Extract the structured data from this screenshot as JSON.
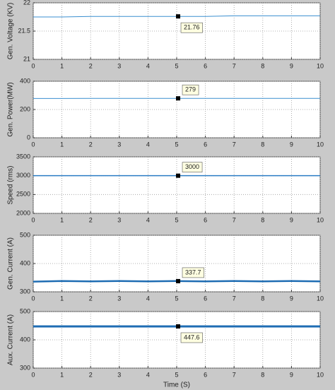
{
  "chart_data": [
    {
      "type": "line",
      "ylabel": "Gen. Voltage (KV)",
      "xlim": [
        0,
        10
      ],
      "xticks": [
        0,
        1,
        2,
        3,
        4,
        5,
        6,
        7,
        8,
        9,
        10
      ],
      "ylim": [
        21,
        22
      ],
      "yticks": [
        21,
        21.5,
        22
      ],
      "grid": true,
      "x": [
        0,
        1,
        2,
        3,
        4,
        5,
        6,
        7,
        8,
        9,
        10
      ],
      "series": [
        {
          "color": "#3a8fd0",
          "linewidth": 1,
          "values": [
            21.75,
            21.75,
            21.76,
            21.76,
            21.76,
            21.76,
            21.76,
            21.77,
            21.77,
            21.77,
            21.77
          ]
        }
      ],
      "datatip": {
        "x": 5.05,
        "y": 21.76
      }
    },
    {
      "type": "line",
      "ylabel": "Gen. Power(MW)",
      "xlim": [
        0,
        10
      ],
      "xticks": [
        0,
        1,
        2,
        3,
        4,
        5,
        6,
        7,
        8,
        9,
        10
      ],
      "ylim": [
        0,
        400
      ],
      "yticks": [
        0,
        200,
        400
      ],
      "grid": true,
      "x": [
        0,
        1,
        2,
        3,
        4,
        5,
        6,
        7,
        8,
        9,
        10
      ],
      "series": [
        {
          "color": "#3a8fd0",
          "linewidth": 1,
          "values": [
            278,
            278,
            279,
            279,
            279,
            279,
            279,
            279,
            279,
            279,
            279
          ]
        }
      ],
      "datatip": {
        "x": 5.05,
        "y": 279
      }
    },
    {
      "type": "line",
      "ylabel": "Speed (rms)",
      "xlim": [
        0,
        10
      ],
      "xticks": [
        0,
        1,
        2,
        3,
        4,
        5,
        6,
        7,
        8,
        9,
        10
      ],
      "ylim": [
        2000,
        3500
      ],
      "yticks": [
        2000,
        2500,
        3000,
        3500
      ],
      "grid": true,
      "x": [
        0,
        1,
        2,
        3,
        4,
        5,
        6,
        7,
        8,
        9,
        10
      ],
      "series": [
        {
          "color": "#2a7cc4",
          "linewidth": 1.5,
          "values": [
            3000,
            3000,
            3000,
            3000,
            3000,
            3000,
            3000,
            3000,
            3000,
            3000,
            3000
          ]
        }
      ],
      "datatip": {
        "x": 5.05,
        "y": 3000
      }
    },
    {
      "type": "line",
      "ylabel": "Gen. Current (A)",
      "xlim": [
        0,
        10
      ],
      "xticks": [
        0,
        1,
        2,
        3,
        4,
        5,
        6,
        7,
        8,
        9,
        10
      ],
      "ylim": [
        300,
        500
      ],
      "yticks": [
        300,
        400,
        500
      ],
      "grid": true,
      "x": [
        0,
        1,
        2,
        3,
        4,
        5,
        6,
        7,
        8,
        9,
        10
      ],
      "series": [
        {
          "color": "#1f6db3",
          "linewidth": 2.5,
          "values": [
            336,
            338,
            337,
            338,
            337,
            338,
            337,
            338,
            337,
            338,
            337
          ]
        }
      ],
      "datatip": {
        "x": 5.05,
        "y": 337.7
      }
    },
    {
      "type": "line",
      "ylabel": "Aux. Current (A)",
      "xlabel": "Time (S)",
      "xlim": [
        0,
        10
      ],
      "xticks": [
        0,
        1,
        2,
        3,
        4,
        5,
        6,
        7,
        8,
        9,
        10
      ],
      "ylim": [
        300,
        500
      ],
      "yticks": [
        300,
        400,
        500
      ],
      "grid": true,
      "x": [
        0,
        1,
        2,
        3,
        4,
        5,
        6,
        7,
        8,
        9,
        10
      ],
      "series": [
        {
          "color": "#1f6db3",
          "linewidth": 3,
          "values": [
            447.6,
            447.6,
            447.6,
            447.6,
            447.6,
            447.6,
            447.6,
            447.6,
            447.6,
            447.6,
            447.6
          ]
        }
      ],
      "datatip": {
        "x": 5.05,
        "y": 447.6
      }
    }
  ]
}
